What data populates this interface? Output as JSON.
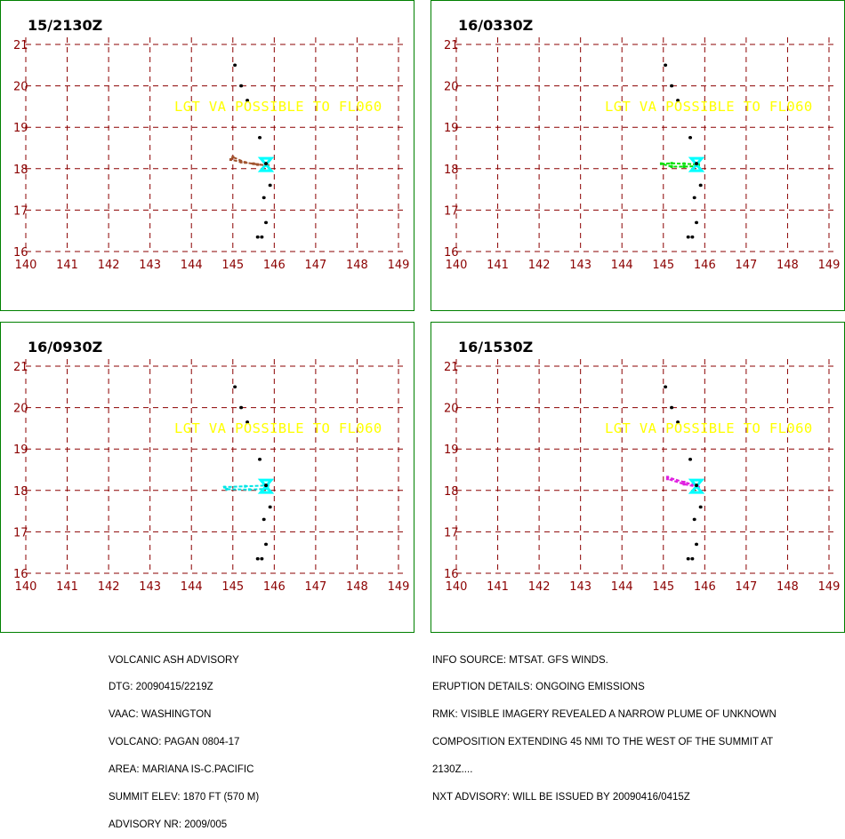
{
  "colors": {
    "grid": "#8b0000",
    "border": "#008000",
    "text_overlay": "#ffff00",
    "volcano": "#00ffff",
    "islands": "#000000"
  },
  "chart_data": [
    {
      "type": "line",
      "title": "15/2130Z",
      "xlim": [
        140,
        149
      ],
      "ylim": [
        16,
        21
      ],
      "xticks": [
        140,
        141,
        142,
        143,
        144,
        145,
        146,
        147,
        148,
        149
      ],
      "yticks": [
        16,
        17,
        18,
        19,
        20,
        21
      ],
      "grid": true,
      "annotation": "LGT VA POSSIBLE TO FL060",
      "series": [
        {
          "color": "#a0522d",
          "x": [
            145.85,
            145.6,
            145.3,
            145.0,
            144.95,
            145.2,
            145.5,
            145.8
          ],
          "y": [
            18.08,
            18.1,
            18.15,
            18.28,
            18.22,
            18.16,
            18.12,
            18.08
          ]
        }
      ]
    },
    {
      "type": "line",
      "title": "16/0330Z",
      "xlim": [
        140,
        149
      ],
      "ylim": [
        16,
        21
      ],
      "xticks": [
        140,
        141,
        142,
        143,
        144,
        145,
        146,
        147,
        148,
        149
      ],
      "yticks": [
        16,
        17,
        18,
        19,
        20,
        21
      ],
      "grid": true,
      "annotation": "LGT VA POSSIBLE TO FL060",
      "series": [
        {
          "color": "#00e000",
          "x": [
            145.85,
            145.5,
            145.2,
            144.95,
            145.2,
            145.5,
            145.85
          ],
          "y": [
            18.06,
            18.05,
            18.05,
            18.12,
            18.13,
            18.12,
            18.1
          ]
        }
      ]
    },
    {
      "type": "line",
      "title": "16/0930Z",
      "xlim": [
        140,
        149
      ],
      "ylim": [
        16,
        21
      ],
      "xticks": [
        140,
        141,
        142,
        143,
        144,
        145,
        146,
        147,
        148,
        149
      ],
      "yticks": [
        16,
        17,
        18,
        19,
        20,
        21
      ],
      "grid": true,
      "annotation": "LGT VA POSSIBLE TO FL060",
      "series": [
        {
          "color": "#00e5e5",
          "x": [
            145.85,
            145.4,
            144.85,
            144.8,
            145.3,
            145.85
          ],
          "y": [
            18.04,
            18.02,
            18.03,
            18.08,
            18.1,
            18.12
          ]
        }
      ]
    },
    {
      "type": "line",
      "title": "16/1530Z",
      "xlim": [
        140,
        149
      ],
      "ylim": [
        16,
        21
      ],
      "xticks": [
        140,
        141,
        142,
        143,
        144,
        145,
        146,
        147,
        148,
        149
      ],
      "yticks": [
        16,
        17,
        18,
        19,
        20,
        21
      ],
      "grid": true,
      "annotation": "LGT VA POSSIBLE TO FL060",
      "series": [
        {
          "color": "#e020e0",
          "x": [
            145.85,
            145.5,
            145.1,
            145.1,
            145.5,
            145.8
          ],
          "y": [
            18.08,
            18.15,
            18.28,
            18.32,
            18.2,
            18.12
          ]
        }
      ]
    }
  ],
  "islands": {
    "x": [
      145.05,
      145.2,
      145.35,
      145.65,
      145.9,
      145.75,
      145.8,
      145.7,
      145.6
    ],
    "y": [
      20.5,
      20.0,
      19.65,
      18.75,
      17.6,
      17.3,
      16.7,
      16.35,
      16.35
    ]
  },
  "volcano": {
    "x": 145.8,
    "y": 18.1
  },
  "advisory_left": [
    "VOLCANIC ASH ADVISORY",
    "DTG: 20090415/2219Z",
    "VAAC: WASHINGTON",
    "VOLCANO: PAGAN 0804-17",
    "AREA: MARIANA IS-C.PACIFIC",
    "SUMMIT ELEV: 1870 FT (570 M)",
    "ADVISORY NR: 2009/005"
  ],
  "advisory_right": [
    "INFO SOURCE: MTSAT. GFS WINDS.",
    "ERUPTION DETAILS: ONGOING EMISSIONS",
    "RMK: VISIBLE IMAGERY REVEALED A NARROW PLUME OF UNKNOWN",
    "COMPOSITION EXTENDING 45 NMI TO THE WEST OF THE SUMMIT AT",
    "2130Z....",
    "NXT ADVISORY: WILL BE ISSUED BY 20090416/0415Z"
  ]
}
